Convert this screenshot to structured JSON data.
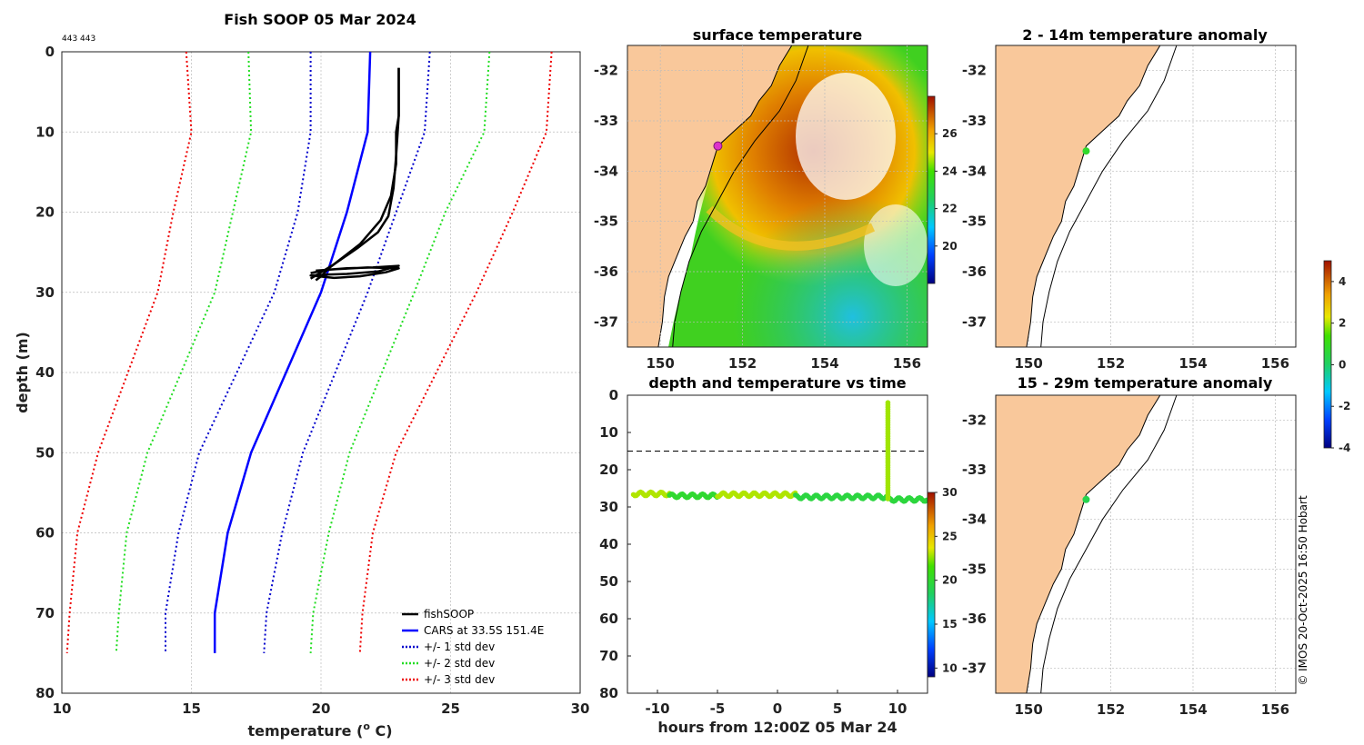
{
  "header": {
    "title": "Fish SOOP 05 Mar 2024",
    "id_label": "443 443",
    "copyright": "© IMOS 20-Oct-2025 16:50 Hobart"
  },
  "colors": {
    "fishsoop": "#000000",
    "cars": "#0000ff",
    "std1": "#0000cc",
    "std2": "#22dd22",
    "std3": "#ee0000",
    "land": "#f9c89b",
    "dash_line": "#000000"
  },
  "chart_data": [
    {
      "id": "profile",
      "type": "line",
      "title": "Fish SOOP 05 Mar 2024",
      "xlabel": "temperature (° C)",
      "xlabel_prefix": "temperature (",
      "xlabel_sup": "o",
      "xlabel_suffix": " C)",
      "ylabel": "depth (m)",
      "xlim": [
        10,
        30
      ],
      "ylim": [
        80,
        0
      ],
      "xticks": [
        10,
        15,
        20,
        25,
        30
      ],
      "yticks": [
        0,
        10,
        20,
        30,
        40,
        50,
        60,
        70,
        80
      ],
      "legend": {
        "placement": "bottom-right",
        "entries": [
          {
            "label": "fishSOOP",
            "style": "solid",
            "color": "#000000"
          },
          {
            "label": "CARS at 33.5S 151.4E",
            "style": "solid",
            "color": "#0000ff"
          },
          {
            "label": "+/- 1 std dev",
            "style": "dotted",
            "color": "#0000cc"
          },
          {
            "label": "+/- 2 std dev",
            "style": "dotted",
            "color": "#22dd22"
          },
          {
            "label": "+/- 3 std dev",
            "style": "dotted",
            "color": "#ee0000"
          }
        ]
      },
      "series": [
        {
          "name": "CARS at 33.5S 151.4E",
          "x": [
            21.9,
            21.8,
            21.0,
            20.0,
            17.3,
            16.4,
            15.9,
            15.9
          ],
          "y": [
            0,
            10,
            20,
            30,
            50,
            60,
            70,
            75
          ]
        },
        {
          "name": "+1 std dev",
          "x": [
            24.2,
            24.0,
            22.9,
            21.8,
            19.3,
            18.5,
            17.9,
            17.8
          ],
          "y": [
            0,
            10,
            20,
            30,
            50,
            60,
            70,
            75
          ]
        },
        {
          "name": "-1 std dev",
          "x": [
            19.6,
            19.6,
            19.1,
            18.2,
            15.3,
            14.5,
            14.0,
            14.0
          ],
          "y": [
            0,
            10,
            20,
            30,
            50,
            60,
            70,
            75
          ]
        },
        {
          "name": "+2 std dev",
          "x": [
            26.5,
            26.3,
            24.8,
            23.6,
            21.1,
            20.3,
            19.7,
            19.6
          ],
          "y": [
            0,
            10,
            20,
            30,
            50,
            60,
            70,
            75
          ]
        },
        {
          "name": "-2 std dev",
          "x": [
            17.2,
            17.3,
            16.6,
            15.9,
            13.3,
            12.5,
            12.2,
            12.1
          ],
          "y": [
            0,
            10,
            20,
            30,
            50,
            60,
            70,
            75
          ]
        },
        {
          "name": "+3 std dev",
          "x": [
            28.9,
            28.7,
            27.4,
            26.0,
            22.9,
            22.0,
            21.6,
            21.5
          ],
          "y": [
            0,
            10,
            20,
            30,
            50,
            60,
            70,
            75
          ]
        },
        {
          "name": "-3 std dev",
          "x": [
            14.8,
            15.0,
            14.3,
            13.7,
            11.4,
            10.6,
            10.3,
            10.2
          ],
          "y": [
            0,
            10,
            20,
            30,
            50,
            60,
            70,
            75
          ]
        },
        {
          "name": "fishSOOP downcast",
          "x": [
            23.0,
            23.0,
            22.9,
            22.9,
            22.7,
            22.3,
            21.5,
            20.3,
            20.0,
            19.8
          ],
          "y": [
            2,
            8,
            10,
            14,
            18,
            21,
            24,
            27,
            28,
            28.5
          ]
        },
        {
          "name": "fishSOOP upcast",
          "x": [
            19.6,
            20.5,
            21.4,
            22.2,
            22.6,
            22.8,
            22.9,
            23.0,
            23.0
          ],
          "y": [
            28.3,
            26.5,
            24.5,
            22.5,
            20.5,
            17,
            13,
            8,
            2
          ]
        },
        {
          "name": "fishSOOP bottom",
          "x": [
            19.6,
            20.2,
            21.0,
            22.0,
            23.0,
            22.2,
            21.0,
            20.2,
            19.6,
            20.5,
            21.5,
            22.5,
            23.0,
            21.8,
            20.6,
            19.8
          ],
          "y": [
            27.6,
            27.2,
            27.0,
            26.9,
            26.7,
            27.4,
            27.7,
            27.8,
            27.9,
            28.2,
            28.0,
            27.5,
            27.0,
            26.9,
            27.1,
            27.3
          ]
        }
      ]
    },
    {
      "id": "surface-map",
      "type": "heatmap",
      "title": "surface temperature",
      "xlim": [
        149.2,
        156.5
      ],
      "ylim": [
        -37.5,
        -31.5
      ],
      "xticks": [
        150,
        152,
        154,
        156
      ],
      "yticks": [
        -32,
        -33,
        -34,
        -35,
        -36,
        -37
      ],
      "colorbar": {
        "range": [
          18,
          28
        ],
        "ticks": [
          20,
          22,
          24,
          26
        ]
      },
      "marker": {
        "lon": 151.4,
        "lat": -33.5,
        "color": "#dd33cc"
      }
    },
    {
      "id": "depth-time",
      "type": "scatter",
      "title": "depth and temperature vs time",
      "xlabel": "hours from 12:00Z 05 Mar 24",
      "xlim": [
        -12.5,
        12.5
      ],
      "ylim": [
        80,
        0
      ],
      "xticks": [
        -10,
        -5,
        0,
        5,
        10
      ],
      "yticks": [
        0,
        10,
        20,
        30,
        40,
        50,
        60,
        70,
        80
      ],
      "dashed_depth": 15,
      "colorbar": {
        "range": [
          9,
          30
        ],
        "ticks": [
          10,
          15,
          20,
          25,
          30
        ]
      },
      "segments": [
        {
          "t_start": -12,
          "t_end": -9,
          "depth": 26.5,
          "temp": 23
        },
        {
          "t_start": -9,
          "t_end": -5,
          "depth": 27,
          "temp": 20
        },
        {
          "t_start": -5,
          "t_end": 1.5,
          "depth": 26.7,
          "temp": 23
        },
        {
          "t_start": 1.5,
          "t_end": 9.2,
          "depth": 27.3,
          "temp": 19.5
        },
        {
          "t_start": 9.2,
          "t_end": 12.5,
          "depth": 28,
          "temp": 19.6
        }
      ],
      "profile_cast": {
        "t": 9.2,
        "depth_top": 2,
        "depth_bottom": 28,
        "temp": 22.8
      }
    },
    {
      "id": "anomaly-shallow",
      "type": "heatmap",
      "title": "2 - 14m temperature anomaly",
      "xlim": [
        149.2,
        156.5
      ],
      "ylim": [
        -37.5,
        -31.5
      ],
      "xticks": [
        150,
        152,
        154,
        156
      ],
      "yticks": [
        -32,
        -33,
        -34,
        -35,
        -36,
        -37
      ],
      "marker": {
        "lon": 151.4,
        "lat": -33.6,
        "anomaly": 0.8
      }
    },
    {
      "id": "anomaly-deep",
      "type": "heatmap",
      "title": "15 - 29m temperature anomaly",
      "xlim": [
        149.2,
        156.5
      ],
      "ylim": [
        -37.5,
        -31.5
      ],
      "xticks": [
        150,
        152,
        154,
        156
      ],
      "yticks": [
        -32,
        -33,
        -34,
        -35,
        -36,
        -37
      ],
      "marker": {
        "lon": 151.4,
        "lat": -33.6,
        "anomaly": 0.3
      },
      "colorbar": {
        "range": [
          -4,
          5
        ],
        "ticks": [
          -4,
          -2,
          0,
          2,
          4
        ]
      }
    }
  ]
}
